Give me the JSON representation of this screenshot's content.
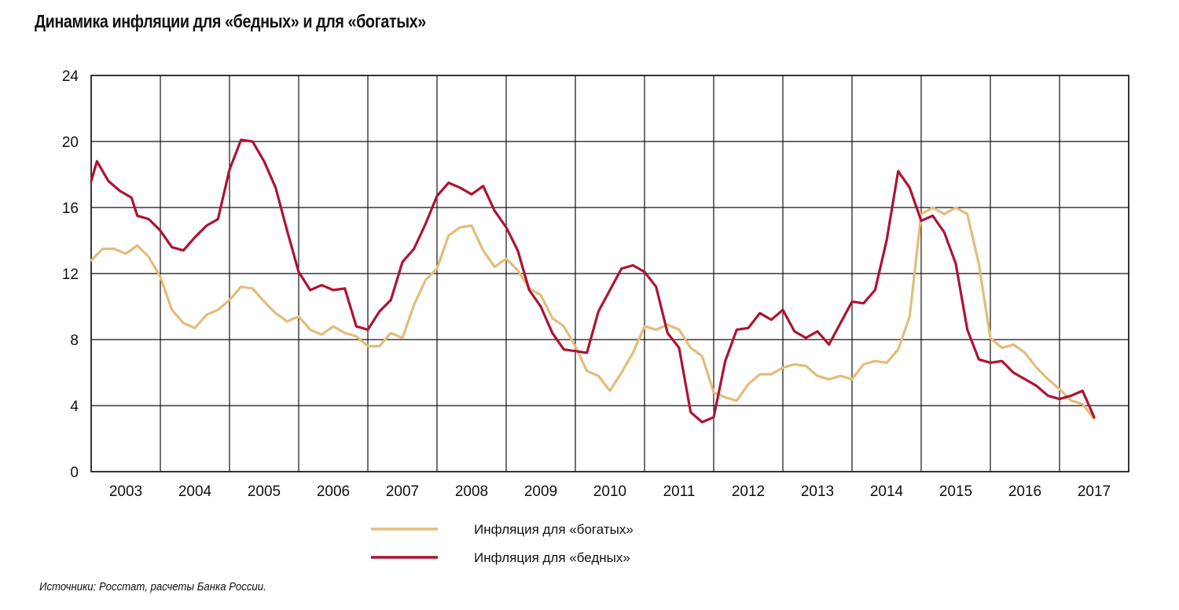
{
  "title": "Динамика инфляции для «бедных» и для «богатых»",
  "source": "Источники: Росстат, расчеты Банка России.",
  "chart_data": {
    "type": "line",
    "title": "Динамика инфляции для «бедных» и для «богатых»",
    "xlabel": "",
    "ylabel": "",
    "ylim": [
      0,
      24
    ],
    "yticks": [
      "0",
      "4",
      "8",
      "12",
      "16",
      "20",
      "24"
    ],
    "x_year_labels": [
      "2003",
      "2004",
      "2005",
      "2006",
      "2007",
      "2008",
      "2009",
      "2010",
      "2011",
      "2012",
      "2013",
      "2014",
      "2015",
      "2016",
      "2017"
    ],
    "grid": true,
    "legend_position": "bottom-center",
    "series": [
      {
        "name": "Инфляция для «богатых»",
        "color": "#e2bd7a",
        "points": [
          [
            "2003-01",
            12.8
          ],
          [
            "2003-03",
            13.5
          ],
          [
            "2003-05",
            13.5
          ],
          [
            "2003-07",
            13.2
          ],
          [
            "2003-09",
            13.7
          ],
          [
            "2003-11",
            13.0
          ],
          [
            "2004-01",
            11.8
          ],
          [
            "2004-03",
            9.8
          ],
          [
            "2004-05",
            9.0
          ],
          [
            "2004-07",
            8.7
          ],
          [
            "2004-09",
            9.5
          ],
          [
            "2004-11",
            9.8
          ],
          [
            "2005-01",
            10.4
          ],
          [
            "2005-03",
            11.2
          ],
          [
            "2005-05",
            11.1
          ],
          [
            "2005-07",
            10.3
          ],
          [
            "2005-09",
            9.6
          ],
          [
            "2005-11",
            9.1
          ],
          [
            "2006-01",
            9.4
          ],
          [
            "2006-03",
            8.6
          ],
          [
            "2006-05",
            8.3
          ],
          [
            "2006-07",
            8.8
          ],
          [
            "2006-09",
            8.4
          ],
          [
            "2006-11",
            8.2
          ],
          [
            "2007-01",
            7.6
          ],
          [
            "2007-03",
            7.6
          ],
          [
            "2007-05",
            8.4
          ],
          [
            "2007-07",
            8.1
          ],
          [
            "2007-09",
            10.1
          ],
          [
            "2007-11",
            11.6
          ],
          [
            "2008-01",
            12.3
          ],
          [
            "2008-03",
            14.3
          ],
          [
            "2008-05",
            14.8
          ],
          [
            "2008-07",
            14.9
          ],
          [
            "2008-09",
            13.4
          ],
          [
            "2008-11",
            12.4
          ],
          [
            "2009-01",
            12.9
          ],
          [
            "2009-03",
            12.2
          ],
          [
            "2009-05",
            11.1
          ],
          [
            "2009-07",
            10.7
          ],
          [
            "2009-09",
            9.3
          ],
          [
            "2009-11",
            8.8
          ],
          [
            "2010-01",
            7.6
          ],
          [
            "2010-03",
            6.1
          ],
          [
            "2010-05",
            5.8
          ],
          [
            "2010-07",
            4.9
          ],
          [
            "2010-09",
            6.0
          ],
          [
            "2010-11",
            7.2
          ],
          [
            "2011-01",
            8.8
          ],
          [
            "2011-03",
            8.6
          ],
          [
            "2011-05",
            8.9
          ],
          [
            "2011-07",
            8.6
          ],
          [
            "2011-09",
            7.5
          ],
          [
            "2011-11",
            7.0
          ],
          [
            "2012-01",
            4.8
          ],
          [
            "2012-03",
            4.5
          ],
          [
            "2012-05",
            4.3
          ],
          [
            "2012-07",
            5.3
          ],
          [
            "2012-09",
            5.9
          ],
          [
            "2012-11",
            5.9
          ],
          [
            "2013-01",
            6.3
          ],
          [
            "2013-03",
            6.5
          ],
          [
            "2013-05",
            6.4
          ],
          [
            "2013-07",
            5.8
          ],
          [
            "2013-09",
            5.6
          ],
          [
            "2013-11",
            5.8
          ],
          [
            "2014-01",
            5.6
          ],
          [
            "2014-03",
            6.5
          ],
          [
            "2014-05",
            6.7
          ],
          [
            "2014-07",
            6.6
          ],
          [
            "2014-09",
            7.4
          ],
          [
            "2014-11",
            9.4
          ],
          [
            "2015-01",
            15.6
          ],
          [
            "2015-03",
            16.0
          ],
          [
            "2015-05",
            15.6
          ],
          [
            "2015-07",
            16.0
          ],
          [
            "2015-09",
            15.6
          ],
          [
            "2015-11",
            12.6
          ],
          [
            "2016-01",
            8.1
          ],
          [
            "2016-03",
            7.5
          ],
          [
            "2016-05",
            7.7
          ],
          [
            "2016-07",
            7.2
          ],
          [
            "2016-09",
            6.3
          ],
          [
            "2016-11",
            5.6
          ],
          [
            "2017-01",
            5.0
          ],
          [
            "2017-03",
            4.3
          ],
          [
            "2017-05",
            4.1
          ],
          [
            "2017-07",
            3.2
          ]
        ]
      },
      {
        "name": "Инфляция для «бедных»",
        "color": "#ad1433",
        "points": [
          [
            "2003-01",
            17.6
          ],
          [
            "2003-02",
            18.8
          ],
          [
            "2003-04",
            17.6
          ],
          [
            "2003-06",
            17.0
          ],
          [
            "2003-08",
            16.6
          ],
          [
            "2003-09",
            15.5
          ],
          [
            "2003-11",
            15.3
          ],
          [
            "2004-01",
            14.6
          ],
          [
            "2004-03",
            13.6
          ],
          [
            "2004-05",
            13.4
          ],
          [
            "2004-07",
            14.2
          ],
          [
            "2004-09",
            14.9
          ],
          [
            "2004-11",
            15.3
          ],
          [
            "2005-01",
            18.3
          ],
          [
            "2005-03",
            20.1
          ],
          [
            "2005-05",
            20.0
          ],
          [
            "2005-07",
            18.8
          ],
          [
            "2005-09",
            17.2
          ],
          [
            "2005-11",
            14.6
          ],
          [
            "2006-01",
            12.1
          ],
          [
            "2006-03",
            11.0
          ],
          [
            "2006-05",
            11.3
          ],
          [
            "2006-07",
            11.0
          ],
          [
            "2006-09",
            11.1
          ],
          [
            "2006-11",
            8.8
          ],
          [
            "2007-01",
            8.6
          ],
          [
            "2007-03",
            9.7
          ],
          [
            "2007-05",
            10.4
          ],
          [
            "2007-07",
            12.7
          ],
          [
            "2007-09",
            13.5
          ],
          [
            "2007-11",
            15.0
          ],
          [
            "2008-01",
            16.7
          ],
          [
            "2008-03",
            17.5
          ],
          [
            "2008-05",
            17.2
          ],
          [
            "2008-07",
            16.8
          ],
          [
            "2008-09",
            17.3
          ],
          [
            "2008-11",
            15.8
          ],
          [
            "2009-01",
            14.8
          ],
          [
            "2009-03",
            13.4
          ],
          [
            "2009-05",
            11.0
          ],
          [
            "2009-07",
            10.0
          ],
          [
            "2009-09",
            8.4
          ],
          [
            "2009-11",
            7.4
          ],
          [
            "2010-01",
            7.3
          ],
          [
            "2010-03",
            7.2
          ],
          [
            "2010-05",
            9.7
          ],
          [
            "2010-07",
            11.0
          ],
          [
            "2010-09",
            12.3
          ],
          [
            "2010-11",
            12.5
          ],
          [
            "2011-01",
            12.1
          ],
          [
            "2011-03",
            11.2
          ],
          [
            "2011-05",
            8.4
          ],
          [
            "2011-07",
            7.5
          ],
          [
            "2011-09",
            3.6
          ],
          [
            "2011-11",
            3.0
          ],
          [
            "2012-01",
            3.3
          ],
          [
            "2012-03",
            6.7
          ],
          [
            "2012-05",
            8.6
          ],
          [
            "2012-07",
            8.7
          ],
          [
            "2012-09",
            9.6
          ],
          [
            "2012-11",
            9.2
          ],
          [
            "2013-01",
            9.8
          ],
          [
            "2013-03",
            8.5
          ],
          [
            "2013-05",
            8.1
          ],
          [
            "2013-07",
            8.5
          ],
          [
            "2013-09",
            7.7
          ],
          [
            "2013-11",
            9.0
          ],
          [
            "2014-01",
            10.3
          ],
          [
            "2014-03",
            10.2
          ],
          [
            "2014-05",
            11.0
          ],
          [
            "2014-07",
            14.0
          ],
          [
            "2014-09",
            18.2
          ],
          [
            "2014-11",
            17.2
          ],
          [
            "2015-01",
            15.2
          ],
          [
            "2015-03",
            15.5
          ],
          [
            "2015-05",
            14.5
          ],
          [
            "2015-07",
            12.6
          ],
          [
            "2015-09",
            8.6
          ],
          [
            "2015-11",
            6.8
          ],
          [
            "2016-01",
            6.6
          ],
          [
            "2016-03",
            6.7
          ],
          [
            "2016-05",
            6.0
          ],
          [
            "2016-07",
            5.6
          ],
          [
            "2016-09",
            5.2
          ],
          [
            "2016-11",
            4.6
          ],
          [
            "2017-01",
            4.4
          ],
          [
            "2017-03",
            4.6
          ],
          [
            "2017-05",
            4.9
          ],
          [
            "2017-07",
            3.3
          ]
        ]
      }
    ]
  }
}
